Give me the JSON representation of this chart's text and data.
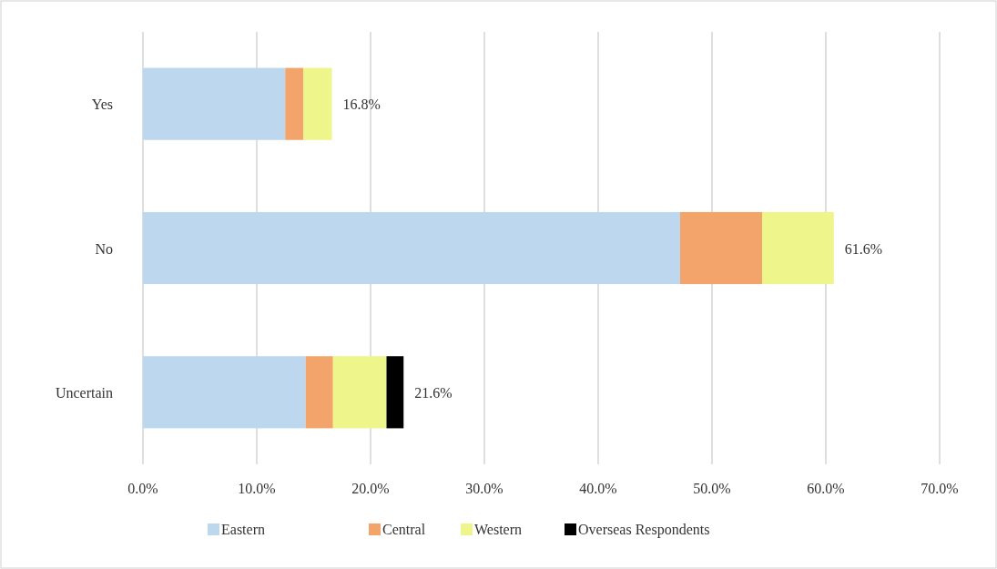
{
  "chart_data": {
    "type": "bar",
    "orientation": "horizontal",
    "stacked": true,
    "categories": [
      "Yes",
      "No",
      "Uncertain"
    ],
    "series": [
      {
        "name": "Eastern",
        "color": "#bdd7ee",
        "values": [
          12.5,
          47.2,
          14.3
        ]
      },
      {
        "name": "Central",
        "color": "#f2a46a",
        "values": [
          1.6,
          7.2,
          2.4
        ]
      },
      {
        "name": "Western",
        "color": "#eef58a",
        "values": [
          2.5,
          6.3,
          4.7
        ]
      },
      {
        "name": "Overseas Respondents",
        "color": "#000000",
        "values": [
          null,
          null,
          1.5
        ]
      }
    ],
    "annotations": [
      "16.8%",
      "61.6%",
      "21.6%"
    ],
    "xlim": [
      0,
      70
    ],
    "xticks": [
      {
        "value": 0,
        "label": "0.0%"
      },
      {
        "value": 10,
        "label": "10.0%"
      },
      {
        "value": 20,
        "label": "20.0%"
      },
      {
        "value": 30,
        "label": "30.0%"
      },
      {
        "value": 40,
        "label": "40.0%"
      },
      {
        "value": 50,
        "label": "50.0%"
      },
      {
        "value": 60,
        "label": "60.0%"
      },
      {
        "value": 70,
        "label": "70.0%"
      }
    ],
    "grid": "x",
    "legend": "bottom"
  }
}
